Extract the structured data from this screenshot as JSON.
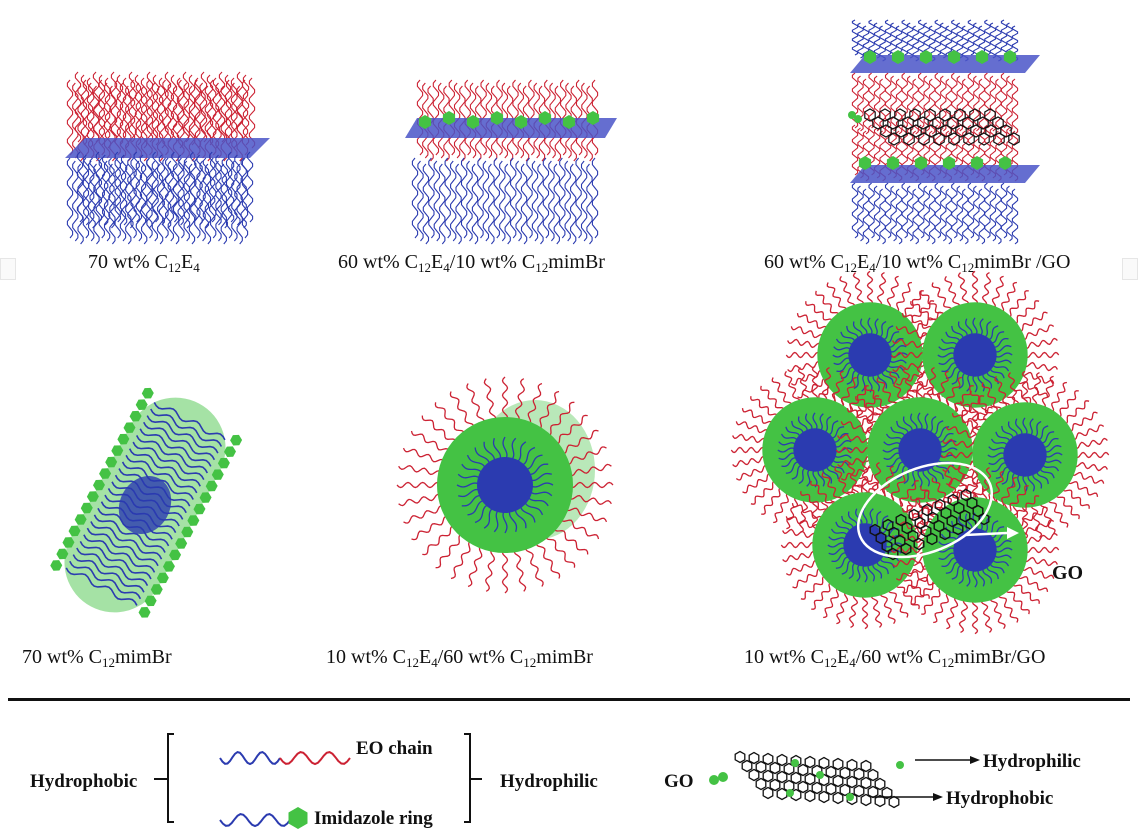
{
  "captions": {
    "c1": {
      "pre": "70 wt% C",
      "s1": "12",
      "mid": "E",
      "s2": "4",
      "post": ""
    },
    "c2": {
      "pre": "60 wt% C",
      "s1": "12",
      "mid": "E",
      "s2": "4",
      "post": "/10 wt% C",
      "s3": "12",
      "tail": "mimBr"
    },
    "c3": {
      "pre": "60 wt% C",
      "s1": "12",
      "mid": "E",
      "s2": "4",
      "post": "/10 wt% C",
      "s3": "12",
      "tail": "mimBr /GO"
    },
    "c4": {
      "pre": "70 wt% C",
      "s1": "12",
      "tail": "mimBr"
    },
    "c5": {
      "pre": "10 wt% C",
      "s1": "12",
      "mid": "E",
      "s2": "4",
      "post": "/60 wt% C",
      "s3": "12",
      "tail": "mimBr"
    },
    "c6": {
      "pre": "10 wt% C",
      "s1": "12",
      "mid": "E",
      "s2": "4",
      "post": "/60 wt% C",
      "s3": "12",
      "tail": "mimBr/GO"
    }
  },
  "go_label": "GO",
  "legend": {
    "hydrophobic_left": "Hydrophobic",
    "eo_chain": "EO chain",
    "imidazole_ring": "Imidazole ring",
    "hydrophilic_mid": "Hydrophilic",
    "go": "GO",
    "hydrophilic_right": "Hydrophilic",
    "hydrophobic_right": "Hydrophobic"
  },
  "colors": {
    "red": "#cc2233",
    "blue": "#2b3bb0",
    "plane": "#4a55c8",
    "green": "#44c244",
    "lightgreen": "#7fd67f",
    "black": "#111111"
  }
}
